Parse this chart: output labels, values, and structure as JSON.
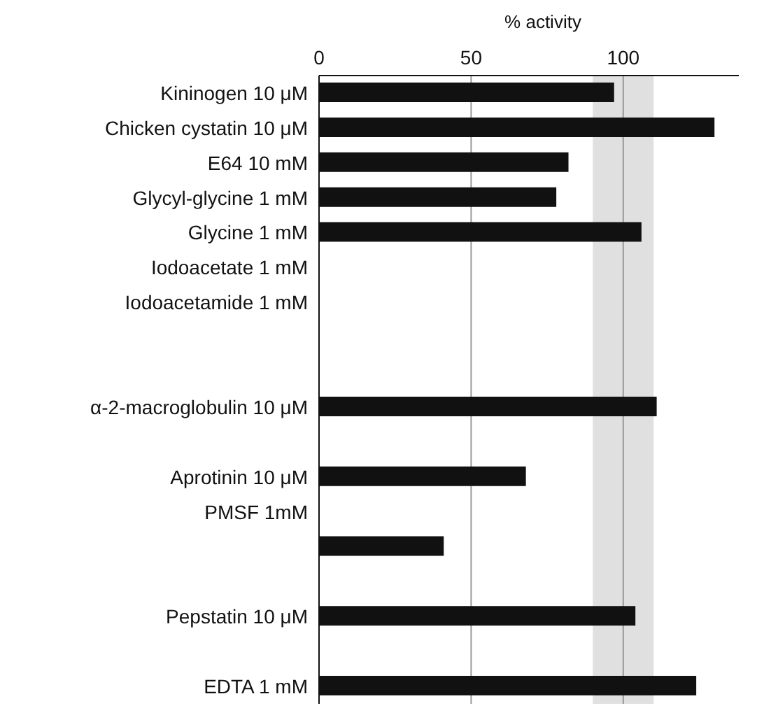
{
  "chart_data": {
    "type": "bar",
    "orientation": "horizontal",
    "xlabel": "% activity",
    "categories": [
      "Kininogen 10 μM",
      "Chicken cystatin 10 μM",
      "E64 10 mM",
      "Glycyl-glycine 1 mM",
      "Glycine 1 mM",
      "Iodoacetate 1 mM",
      "Iodoacetamide 1 mM",
      null,
      null,
      "α-2-macroglobulin 10 μM",
      null,
      "Aprotinin 10 μM",
      "PMSF 1mM",
      null,
      null,
      "Pepstatin 10 μM",
      null,
      "EDTA 1 mM"
    ],
    "values": [
      97,
      130,
      82,
      78,
      106,
      0,
      0,
      null,
      null,
      111,
      null,
      68,
      0,
      41,
      null,
      104,
      null,
      124
    ],
    "color": "#111111",
    "xlim": [
      0,
      138
    ],
    "xticks": [
      0,
      50,
      100
    ],
    "grid": "x",
    "bands": [
      {
        "axis": "x",
        "from": 90,
        "to": 110,
        "color": "#e0e0e0"
      }
    ]
  }
}
